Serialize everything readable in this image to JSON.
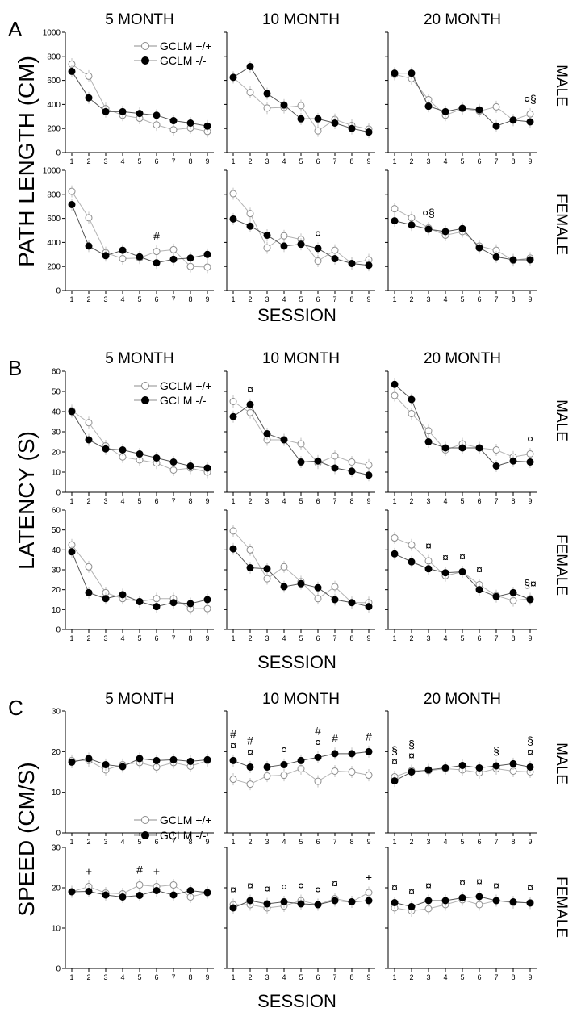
{
  "colors": {
    "gclm_wt": "#b3b3b3",
    "gclm_ko": "#000000",
    "axis": "#000000"
  },
  "legend": {
    "wt_label": "GCLM +/+",
    "ko_label": "GCLM -/-"
  },
  "columns": [
    "5 MONTH",
    "10 MONTH",
    "20 MONTH"
  ],
  "rows": [
    "MALE",
    "FEMALE"
  ],
  "sessions": [
    1,
    2,
    3,
    4,
    5,
    6,
    7,
    8,
    9
  ],
  "xlabel": "SESSION",
  "chart_data": [
    {
      "type": "line",
      "panel_letter": "A",
      "ylabel": "PATH LENGTH (CM)",
      "legend_position": "top-left of 5 MONTH male panel",
      "male": {
        "ylim": [
          0,
          1000
        ],
        "yticks": [
          0,
          200,
          400,
          600,
          800,
          1000
        ],
        "panels": [
          {
            "wt": [
              735,
              635,
              365,
              310,
              285,
              230,
              190,
              205,
              175
            ],
            "ko": [
              675,
              455,
              340,
              340,
              325,
              310,
              265,
              245,
              220
            ],
            "annotations": []
          },
          {
            "wt": [
              625,
              500,
              370,
              375,
              390,
              180,
              275,
              225,
              195
            ],
            "ko": [
              625,
              715,
              490,
              395,
              280,
              280,
              245,
              200,
              170
            ],
            "annotations": []
          },
          {
            "wt": [
              650,
              615,
              440,
              310,
              365,
              345,
              380,
              270,
              320
            ],
            "ko": [
              660,
              660,
              385,
              340,
              370,
              355,
              220,
              270,
              255
            ],
            "annotations": [
              {
                "session": 9,
                "text": "¤§"
              }
            ]
          }
        ]
      },
      "female": {
        "ylim": [
          0,
          1000
        ],
        "yticks": [
          0,
          200,
          400,
          600,
          800,
          1000
        ],
        "panels": [
          {
            "wt": [
              825,
              605,
              315,
              265,
              270,
              325,
              340,
              200,
              195
            ],
            "ko": [
              715,
              370,
              290,
              335,
              280,
              230,
              260,
              270,
              300
            ],
            "annotations": [
              {
                "session": 6,
                "text": "#"
              }
            ]
          },
          {
            "wt": [
              805,
              640,
              355,
              455,
              425,
              245,
              335,
              225,
              255
            ],
            "ko": [
              595,
              535,
              460,
              370,
              385,
              350,
              265,
              225,
              210
            ],
            "annotations": [
              {
                "session": 6,
                "text": "¤"
              }
            ]
          },
          {
            "wt": [
              680,
              605,
              520,
              460,
              490,
              370,
              335,
              250,
              270
            ],
            "ko": [
              580,
              545,
              510,
              490,
              515,
              355,
              280,
              255,
              255
            ],
            "annotations": [
              {
                "session": 3,
                "text": "¤§"
              }
            ]
          }
        ]
      }
    },
    {
      "type": "line",
      "panel_letter": "B",
      "ylabel": "LATENCY (S)",
      "legend_position": "top-left of 5 MONTH male panel",
      "male": {
        "ylim": [
          0,
          60
        ],
        "yticks": [
          0,
          10,
          20,
          30,
          40,
          50,
          60
        ],
        "panels": [
          {
            "wt": [
              40.5,
              34.5,
              23,
              17.5,
              16,
              14.5,
              11,
              12,
              10
            ],
            "ko": [
              40,
              26,
              21.5,
              21,
              19,
              17,
              15,
              13,
              12
            ],
            "annotations": []
          },
          {
            "wt": [
              45,
              39.5,
              26,
              26,
              24,
              14.5,
              18,
              15,
              13.5
            ],
            "ko": [
              37.5,
              43.5,
              29,
              26,
              15,
              15.5,
              12,
              10.5,
              8.5
            ],
            "annotations": [
              {
                "session": 2,
                "text": "¤"
              }
            ]
          },
          {
            "wt": [
              48,
              39,
              30.5,
              21,
              24,
              22,
              21,
              17.5,
              19
            ],
            "ko": [
              53.5,
              46,
              25,
              22,
              22,
              22,
              13,
              15.5,
              15
            ],
            "annotations": [
              {
                "session": 9,
                "text": "¤"
              }
            ]
          }
        ]
      },
      "female": {
        "ylim": [
          0,
          60
        ],
        "yticks": [
          0,
          10,
          20,
          30,
          40,
          50,
          60
        ],
        "panels": [
          {
            "wt": [
              42.5,
              31.5,
              18.5,
              15.5,
              14,
              15.5,
              15.5,
              10.5,
              10.5
            ],
            "ko": [
              39,
              18.5,
              15.5,
              17.5,
              14,
              11.5,
              13.5,
              13,
              15
            ],
            "annotations": []
          },
          {
            "wt": [
              49.5,
              40,
              25.5,
              31.5,
              24,
              15.5,
              21.5,
              13.5,
              13.5
            ],
            "ko": [
              40.5,
              31,
              30.5,
              21.5,
              23,
              21,
              15,
              13.5,
              11.5
            ],
            "annotations": []
          },
          {
            "wt": [
              46,
              42.5,
              34.5,
              27,
              29,
              22.5,
              17,
              14.5,
              15.5
            ],
            "ko": [
              38,
              34,
              30.5,
              28.5,
              29,
              20,
              16.5,
              18.5,
              15
            ],
            "annotations": [
              {
                "session": 3,
                "text": "¤"
              },
              {
                "session": 4,
                "text": "¤"
              },
              {
                "session": 5,
                "text": "¤"
              },
              {
                "session": 6,
                "text": "¤"
              },
              {
                "session": 9,
                "text": "§¤"
              }
            ]
          }
        ]
      }
    },
    {
      "type": "line",
      "panel_letter": "C",
      "ylabel": "SPEED (CM/S)",
      "legend_position": "bottom-left of 5 MONTH male panel",
      "male": {
        "ylim": [
          0,
          30
        ],
        "yticks": [
          0,
          10,
          20,
          30
        ],
        "panels": [
          {
            "wt": [
              17.8,
              17.8,
              15.5,
              16.8,
              17.3,
              16.2,
              17.3,
              16.4,
              17.8
            ],
            "ko": [
              17.4,
              18.3,
              16.8,
              16.3,
              18.3,
              17.8,
              18,
              17.6,
              18
            ],
            "annotations": []
          },
          {
            "wt": [
              13.2,
              12,
              14,
              14.2,
              15.8,
              12.7,
              15.2,
              15,
              14.2
            ],
            "ko": [
              17.8,
              16.2,
              16.2,
              16.8,
              17.8,
              18.6,
              19.5,
              19.5,
              20
            ],
            "annotations": [
              {
                "session": 1,
                "text": "#\n¤"
              },
              {
                "session": 2,
                "text": "#\n¤"
              },
              {
                "session": 4,
                "text": "¤"
              },
              {
                "session": 6,
                "text": "#\n¤"
              },
              {
                "session": 7,
                "text": "#"
              },
              {
                "session": 9,
                "text": "#"
              }
            ]
          }
        ]
      },
      "male_20": {
        "wt": [
          13.8,
          15.3,
          15.3,
          15.8,
          15.5,
          14.8,
          15.8,
          15.2,
          15
        ],
        "ko": [
          12.8,
          15,
          15.5,
          16,
          16.6,
          16,
          16.5,
          17,
          16.2
        ],
        "annotations": [
          {
            "session": 1,
            "text": "§\n¤"
          },
          {
            "session": 2,
            "text": "§\n¤"
          },
          {
            "session": 7,
            "text": "§"
          },
          {
            "session": 9,
            "text": "§\n¤"
          }
        ]
      },
      "female": {
        "ylim": [
          0,
          30
        ],
        "yticks": [
          0,
          10,
          20,
          30
        ],
        "panels": [
          {
            "wt": [
              19,
              20.3,
              18.7,
              18.5,
              20.7,
              20.3,
              20.7,
              17.7,
              18.8
            ],
            "ko": [
              19,
              19.1,
              18.2,
              17.7,
              18.1,
              19.3,
              18.2,
              19.3,
              18.8
            ],
            "annotations": [
              {
                "session": 2,
                "text": "+"
              },
              {
                "session": 5,
                "text": "#"
              },
              {
                "session": 6,
                "text": "+"
              }
            ]
          },
          {
            "wt": [
              15.8,
              15.8,
              15,
              15.5,
              16.8,
              15.8,
              17.3,
              16.5,
              18.8
            ],
            "ko": [
              15,
              16.8,
              16,
              16.5,
              16,
              15.8,
              16.8,
              16.5,
              16.8
            ],
            "annotations": [
              {
                "session": 1,
                "text": "¤"
              },
              {
                "session": 2,
                "text": "¤"
              },
              {
                "session": 3,
                "text": "¤"
              },
              {
                "session": 4,
                "text": "¤"
              },
              {
                "session": 5,
                "text": "¤"
              },
              {
                "session": 6,
                "text": "¤"
              },
              {
                "session": 7,
                "text": "¤"
              },
              {
                "session": 9,
                "text": "+"
              }
            ]
          },
          {
            "wt": [
              15,
              14.3,
              14.8,
              15.8,
              17,
              15.8,
              16.8,
              16.3,
              16.3
            ],
            "ko": [
              16.3,
              15.3,
              16.8,
              16.8,
              17.5,
              17.8,
              16.8,
              16.5,
              16.2
            ],
            "annotations": [
              {
                "session": 1,
                "text": "¤"
              },
              {
                "session": 2,
                "text": "¤"
              },
              {
                "session": 3,
                "text": "¤"
              },
              {
                "session": 5,
                "text": "¤"
              },
              {
                "session": 6,
                "text": "¤"
              },
              {
                "session": 7,
                "text": "¤"
              },
              {
                "session": 9,
                "text": "¤"
              }
            ]
          }
        ]
      }
    }
  ]
}
